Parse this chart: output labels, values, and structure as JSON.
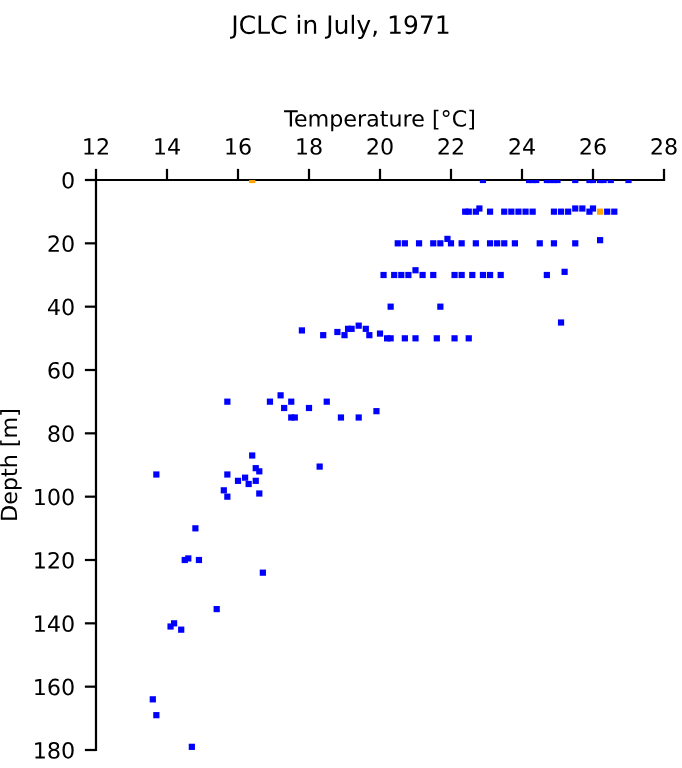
{
  "chart_data": {
    "type": "scatter",
    "title": "JCLC in July, 1971",
    "xlabel": "Temperature [°C]",
    "ylabel": "Depth [m]",
    "xlim": [
      12,
      28
    ],
    "xticks": [
      12,
      14,
      16,
      18,
      20,
      22,
      24,
      26,
      28
    ],
    "ylim": [
      180,
      0
    ],
    "yticks": [
      0,
      20,
      40,
      60,
      80,
      100,
      120,
      140,
      160,
      180
    ],
    "marker": "square",
    "grid": false,
    "legend": false,
    "series": [
      {
        "color": "#0000ff",
        "x": [
          22.9,
          24.2,
          24.3,
          24.4,
          24.7,
          24.8,
          24.9,
          25.0,
          25.5,
          25.9,
          26.0,
          26.2,
          26.3,
          26.5,
          27.0,
          22.4,
          22.5,
          22.7,
          22.8,
          23.1,
          23.5,
          23.7,
          23.9,
          24.1,
          24.3,
          24.9,
          25.1,
          25.3,
          25.5,
          25.7,
          25.9,
          26.0,
          26.4,
          26.6,
          20.5,
          20.7,
          21.1,
          21.5,
          21.7,
          21.9,
          22.0,
          22.3,
          22.7,
          23.1,
          23.3,
          23.5,
          23.8,
          24.5,
          24.9,
          25.5,
          26.2,
          20.1,
          20.4,
          20.6,
          20.8,
          21.0,
          21.2,
          21.5,
          22.1,
          22.3,
          22.6,
          22.9,
          23.1,
          23.4,
          24.7,
          25.2,
          20.3,
          21.7,
          25.1,
          17.8,
          18.4,
          18.8,
          19.0,
          19.1,
          19.2,
          19.4,
          19.6,
          19.7,
          20.0,
          20.2,
          20.3,
          20.7,
          21.0,
          21.6,
          22.1,
          22.5,
          15.7,
          16.9,
          17.2,
          17.5,
          17.3,
          17.6,
          17.5,
          18.0,
          18.5,
          18.9,
          19.4,
          19.9,
          13.7,
          15.7,
          15.6,
          15.7,
          16.0,
          16.2,
          16.3,
          16.4,
          16.5,
          16.6,
          16.5,
          16.6,
          18.3,
          14.8,
          14.5,
          14.6,
          14.9,
          16.7,
          15.4,
          14.1,
          14.2,
          14.4,
          13.6,
          13.7,
          14.7
        ],
        "values": [
          0,
          0,
          0,
          0,
          0,
          0,
          0,
          0,
          0,
          0,
          0,
          0,
          0,
          0,
          0,
          10,
          10,
          10,
          9,
          10,
          10,
          10,
          10,
          10,
          10,
          10,
          10,
          10,
          9,
          9,
          10,
          9,
          10,
          10,
          20,
          20,
          20,
          20,
          20,
          18.6,
          20,
          20,
          20,
          20,
          20,
          20,
          20,
          20,
          20,
          20,
          19,
          30,
          30,
          30,
          30,
          28.5,
          30,
          30,
          30,
          30,
          30,
          30,
          30,
          30,
          30,
          29,
          40,
          40,
          45,
          47.5,
          49,
          48,
          49,
          47,
          47,
          46,
          47,
          49,
          48.5,
          50,
          50,
          50,
          50,
          50,
          50,
          50,
          70,
          70,
          68,
          70,
          72,
          75,
          75,
          72,
          70,
          75,
          75,
          73,
          93,
          93,
          98,
          100,
          95,
          94,
          96,
          87,
          91,
          92,
          95,
          99,
          90.5,
          110,
          120,
          119.5,
          120,
          124,
          135.5,
          141,
          140,
          142,
          164,
          169,
          179
        ]
      },
      {
        "color": "#ffa500",
        "x": [
          16.4,
          26.2
        ],
        "values": [
          0,
          10
        ]
      }
    ]
  }
}
